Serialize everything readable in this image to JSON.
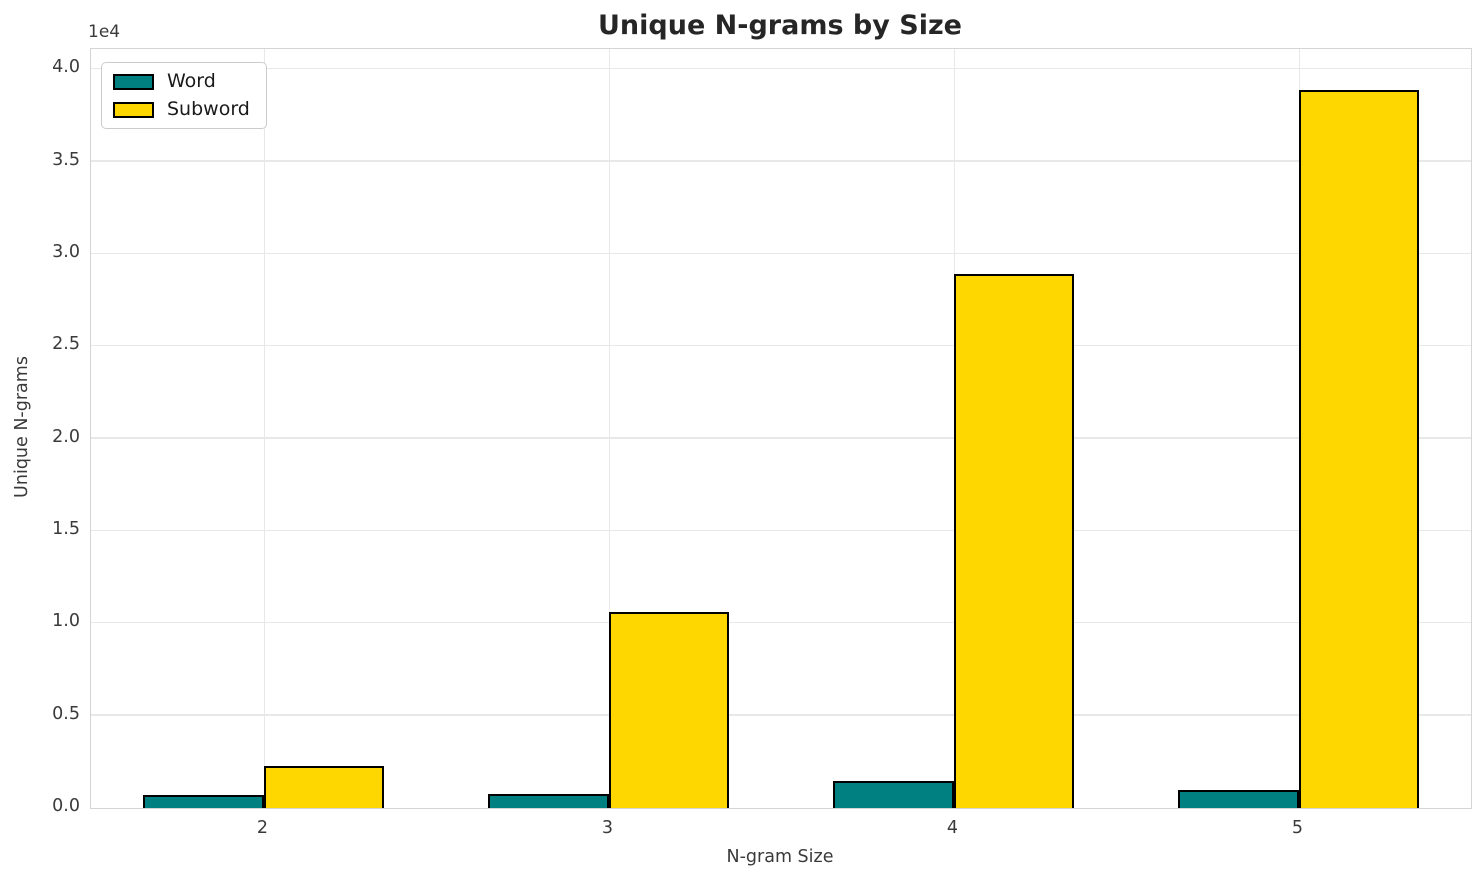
{
  "chart_data": {
    "type": "bar",
    "title": "Unique N-grams by Size",
    "xlabel": "N-gram Size",
    "ylabel": "Unique N-grams",
    "offset_label": "1e4",
    "categories": [
      "2",
      "3",
      "4",
      "5"
    ],
    "series": [
      {
        "name": "Word",
        "color": "#008080",
        "values": [
          700,
          750,
          1450,
          1000
        ]
      },
      {
        "name": "Subword",
        "color": "#FFD700",
        "values": [
          2300,
          10600,
          28900,
          38900
        ]
      }
    ],
    "bar_edge_color": "#000000",
    "bar_width_fraction": 0.0875,
    "ylim": [
      0,
      41100
    ],
    "yticks": [
      0,
      5000,
      10000,
      15000,
      20000,
      25000,
      30000,
      35000,
      40000
    ],
    "ytick_labels": [
      "0.0",
      "0.5",
      "1.0",
      "1.5",
      "2.0",
      "2.5",
      "3.0",
      "3.5",
      "4.0"
    ],
    "grid": true,
    "legend_position": "upper-left"
  }
}
